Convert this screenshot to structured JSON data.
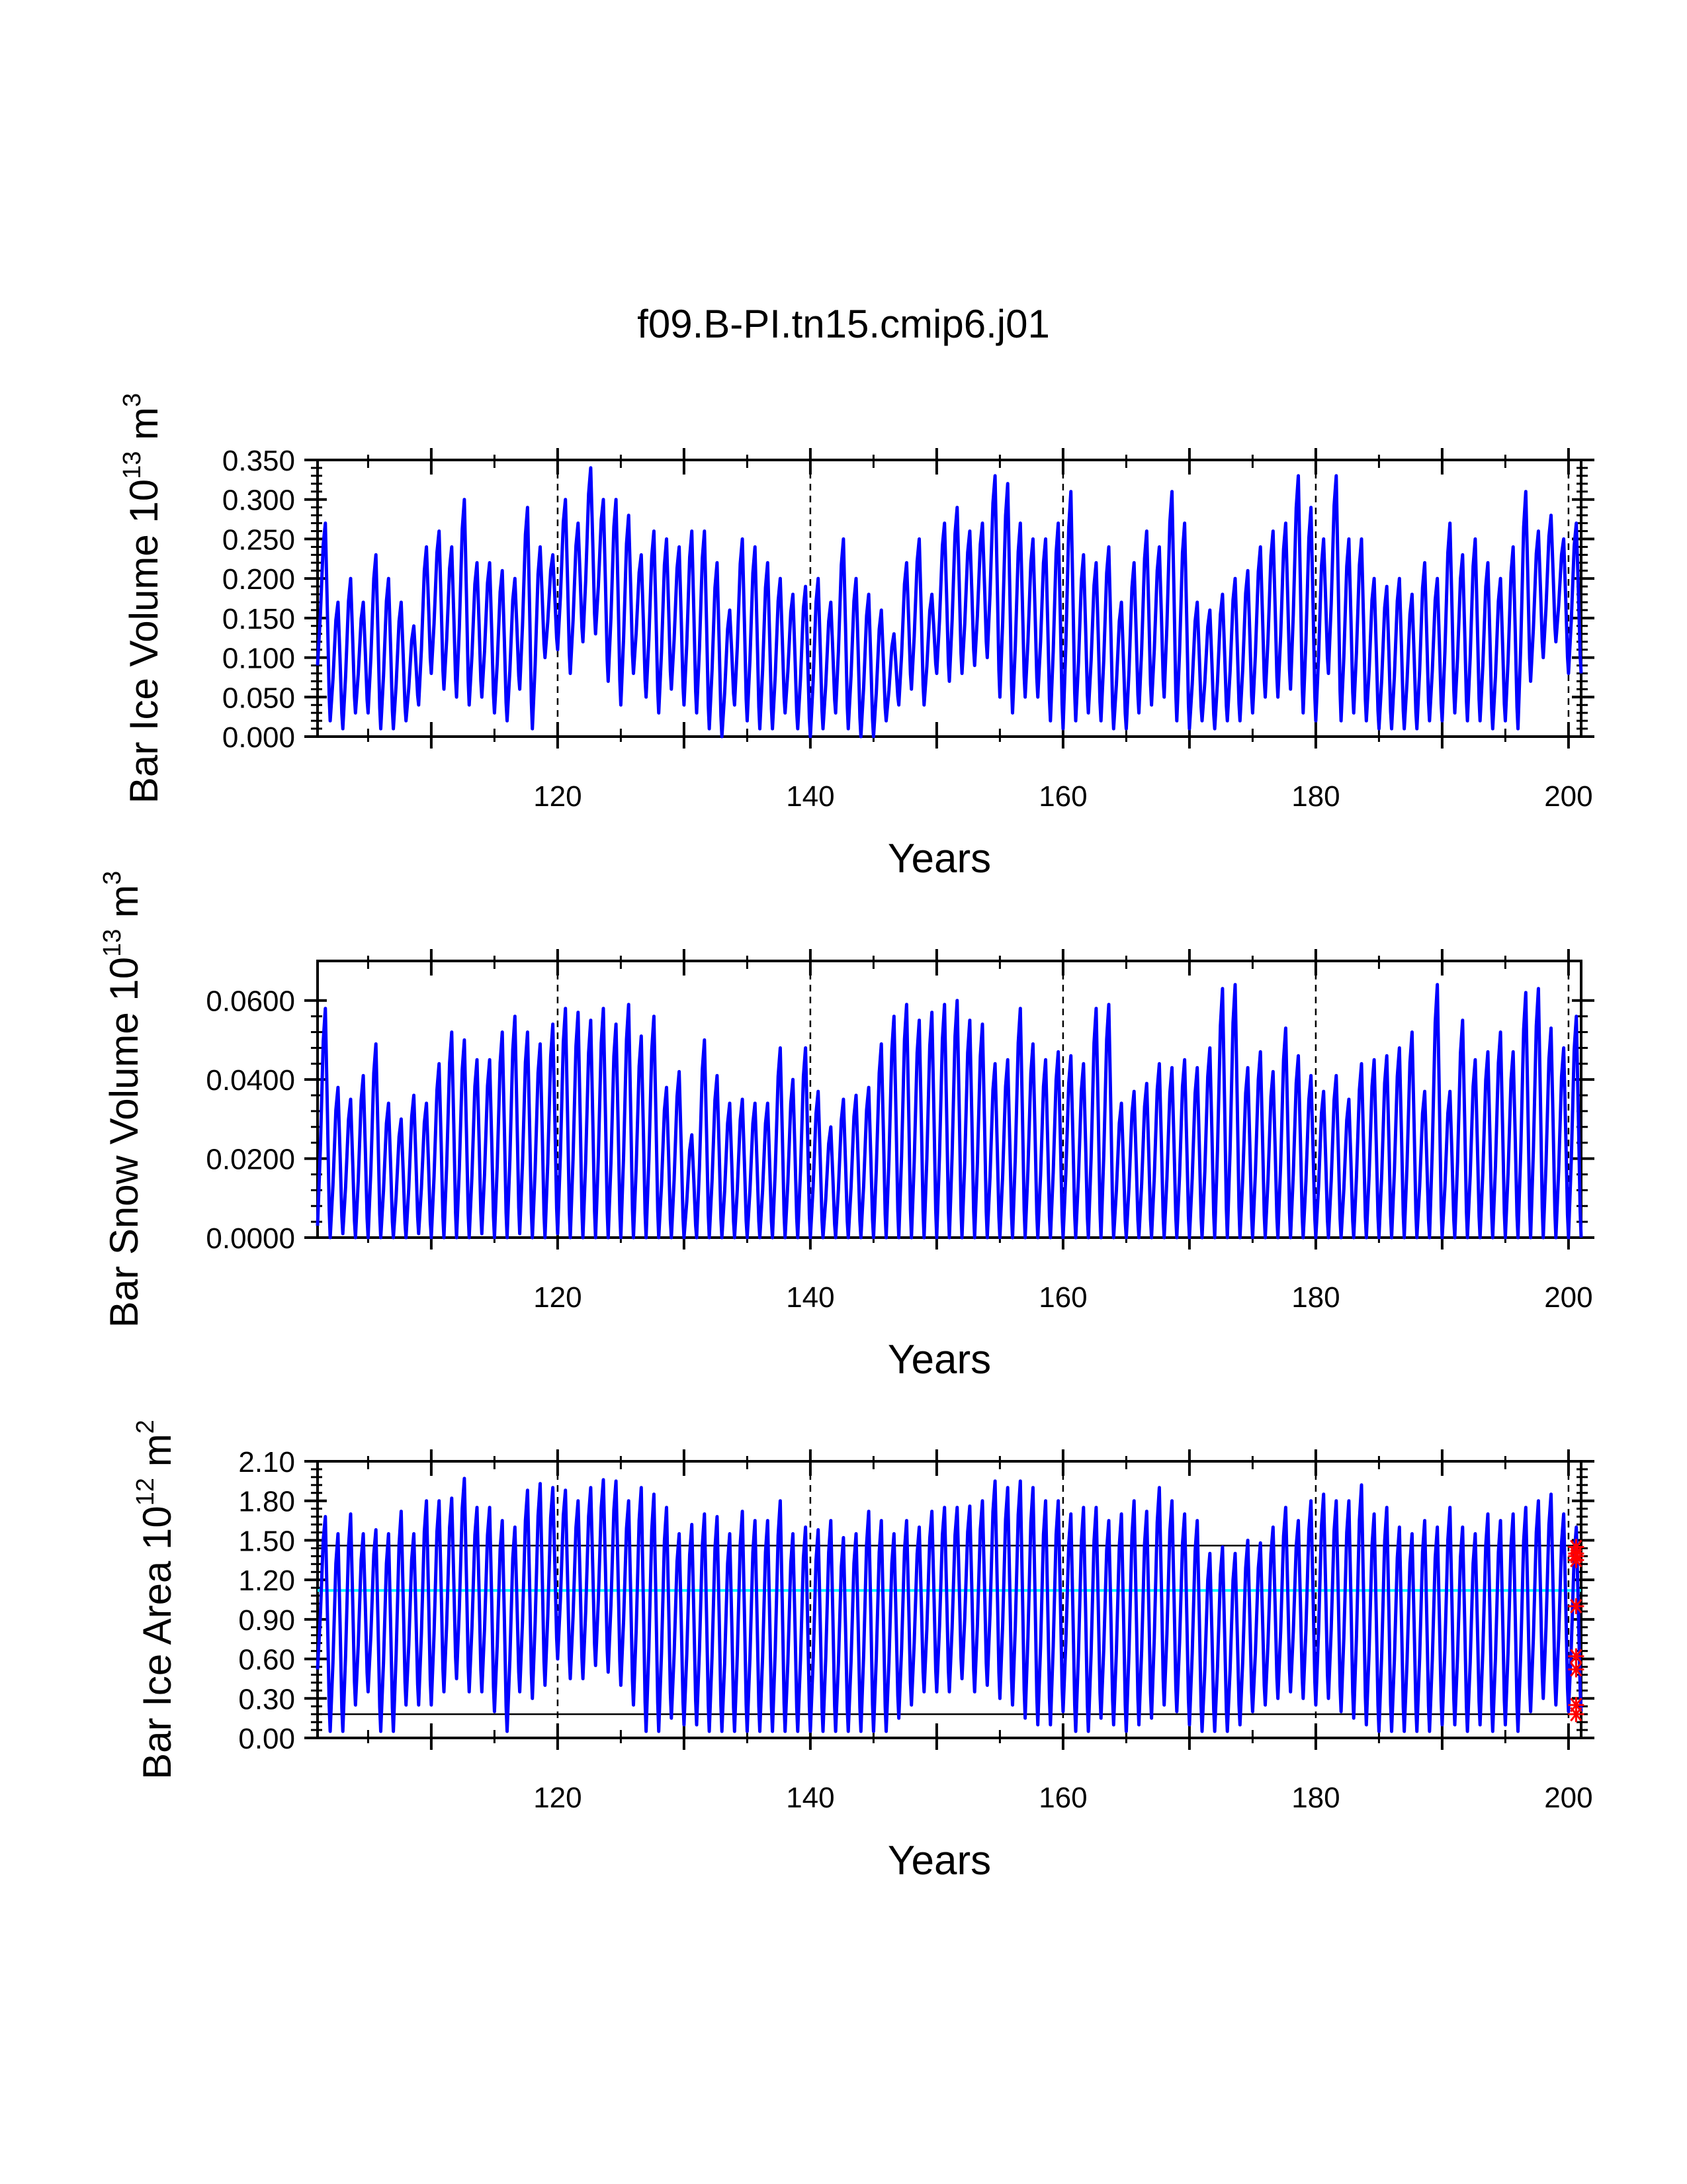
{
  "title": "f09.B-PI.tn15.cmip6.j01",
  "colors": {
    "series": "#0000ff",
    "mean_line": "#00ffff",
    "markers": "#ff0000",
    "axes": "#000000",
    "background": "#ffffff"
  },
  "chart_data": [
    {
      "type": "line",
      "panel": "ice_volume",
      "title": "",
      "xlabel": "Years",
      "ylabel_main": "Bar Ice Volume 10",
      "ylabel_exp": "13",
      "ylabel_unit": " m",
      "ylabel_unit_exp": "3",
      "xlim": [
        101,
        201
      ],
      "ylim": [
        0,
        0.35
      ],
      "yticks": [
        0,
        0.05,
        0.1,
        0.15,
        0.2,
        0.25,
        0.3,
        0.35
      ],
      "ytick_labels": [
        "0.000",
        "0.050",
        "0.100",
        "0.150",
        "0.200",
        "0.250",
        "0.300",
        "0.350"
      ],
      "xticks": [
        120,
        140,
        160,
        180,
        200
      ],
      "xtick_labels": [
        "120",
        "140",
        "160",
        "180",
        "200"
      ],
      "vlines": [
        120,
        140,
        160,
        180,
        200
      ],
      "series": [
        {
          "name": "Bar Ice Volume",
          "x_start": 101,
          "peaks": [
            0.27,
            0.17,
            0.2,
            0.17,
            0.23,
            0.2,
            0.17,
            0.14,
            0.24,
            0.26,
            0.24,
            0.3,
            0.22,
            0.22,
            0.21,
            0.2,
            0.29,
            0.24,
            0.23,
            0.3,
            0.27,
            0.34,
            0.3,
            0.3,
            0.28,
            0.23,
            0.26,
            0.25,
            0.24,
            0.26,
            0.26,
            0.22,
            0.16,
            0.25,
            0.24,
            0.22,
            0.2,
            0.18,
            0.19,
            0.2,
            0.17,
            0.25,
            0.2,
            0.18,
            0.16,
            0.13,
            0.22,
            0.25,
            0.18,
            0.27,
            0.29,
            0.26,
            0.27,
            0.33,
            0.32,
            0.27,
            0.25,
            0.25,
            0.27,
            0.31,
            0.23,
            0.22,
            0.24,
            0.17,
            0.22,
            0.26,
            0.24,
            0.31,
            0.27,
            0.17,
            0.16,
            0.18,
            0.2,
            0.21,
            0.24,
            0.26,
            0.27,
            0.33,
            0.29,
            0.25,
            0.33,
            0.25,
            0.25,
            0.2,
            0.19,
            0.2,
            0.18,
            0.22,
            0.2,
            0.27,
            0.23,
            0.25,
            0.22,
            0.2,
            0.24,
            0.31,
            0.26,
            0.28,
            0.25,
            0.27
          ],
          "troughs": [
            0.09,
            0.02,
            0.01,
            0.03,
            0.03,
            0.01,
            0.01,
            0.02,
            0.04,
            0.08,
            0.06,
            0.05,
            0.04,
            0.05,
            0.03,
            0.02,
            0.06,
            0.01,
            0.1,
            0.11,
            0.08,
            0.12,
            0.13,
            0.07,
            0.04,
            0.08,
            0.05,
            0.03,
            0.06,
            0.04,
            0.03,
            0.01,
            0.0,
            0.04,
            0.02,
            0.01,
            0.01,
            0.03,
            0.01,
            0.0,
            0.01,
            0.03,
            0.01,
            0.0,
            0.0,
            0.02,
            0.04,
            0.06,
            0.04,
            0.08,
            0.07,
            0.08,
            0.09,
            0.1,
            0.05,
            0.03,
            0.05,
            0.05,
            0.02,
            0.01,
            0.02,
            0.03,
            0.02,
            0.01,
            0.01,
            0.03,
            0.04,
            0.05,
            0.02,
            0.01,
            0.02,
            0.01,
            0.02,
            0.02,
            0.03,
            0.05,
            0.05,
            0.06,
            0.03,
            0.02,
            0.08,
            0.02,
            0.03,
            0.02,
            0.01,
            0.01,
            0.01,
            0.01,
            0.02,
            0.02,
            0.03,
            0.02,
            0.02,
            0.01,
            0.02,
            0.01,
            0.07,
            0.1,
            0.12,
            0.08
          ]
        }
      ],
      "hlines": []
    },
    {
      "type": "line",
      "panel": "snow_volume",
      "title": "",
      "xlabel": "Years",
      "ylabel_main": "Bar Snow Volume 10",
      "ylabel_exp": "13",
      "ylabel_unit": " m",
      "ylabel_unit_exp": "3",
      "xlim": [
        101,
        201
      ],
      "ylim": [
        0,
        0.07
      ],
      "yticks": [
        0,
        0.02,
        0.04,
        0.06
      ],
      "ytick_labels": [
        "0.0000",
        "0.0200",
        "0.0400",
        "0.0600"
      ],
      "xticks": [
        120,
        140,
        160,
        180,
        200
      ],
      "xtick_labels": [
        "120",
        "140",
        "160",
        "180",
        "200"
      ],
      "vlines": [
        120,
        140,
        160,
        180,
        200
      ],
      "series": [
        {
          "name": "Bar Snow Volume",
          "x_start": 101,
          "peaks": [
            0.058,
            0.038,
            0.035,
            0.041,
            0.049,
            0.034,
            0.03,
            0.036,
            0.034,
            0.044,
            0.052,
            0.05,
            0.045,
            0.045,
            0.052,
            0.056,
            0.052,
            0.049,
            0.054,
            0.058,
            0.057,
            0.055,
            0.058,
            0.054,
            0.059,
            0.051,
            0.056,
            0.038,
            0.042,
            0.026,
            0.05,
            0.041,
            0.034,
            0.035,
            0.034,
            0.034,
            0.048,
            0.04,
            0.048,
            0.037,
            0.028,
            0.035,
            0.036,
            0.038,
            0.049,
            0.056,
            0.059,
            0.055,
            0.057,
            0.059,
            0.06,
            0.055,
            0.054,
            0.044,
            0.045,
            0.058,
            0.049,
            0.045,
            0.047,
            0.046,
            0.044,
            0.058,
            0.059,
            0.034,
            0.037,
            0.039,
            0.044,
            0.043,
            0.045,
            0.043,
            0.048,
            0.063,
            0.064,
            0.043,
            0.047,
            0.042,
            0.053,
            0.046,
            0.041,
            0.037,
            0.041,
            0.035,
            0.044,
            0.045,
            0.046,
            0.048,
            0.052,
            0.037,
            0.064,
            0.037,
            0.055,
            0.045,
            0.047,
            0.052,
            0.047,
            0.062,
            0.063,
            0.053,
            0.048,
            0.056
          ],
          "troughs": [
            0.003,
            0.0,
            0.001,
            0.0,
            0.0,
            0.0,
            0.0,
            0.0,
            0.001,
            0.0,
            0.0,
            0.0,
            0.0,
            0.001,
            0.0,
            0.0,
            0.001,
            0.0,
            0.0,
            0.001,
            0.0,
            0.0,
            0.0,
            0.0,
            0.0,
            0.0,
            0.0,
            0.0,
            0.0,
            0.0,
            0.0,
            0.0,
            0.0,
            0.0,
            0.0,
            0.0,
            0.0,
            0.0,
            0.0,
            0.0,
            0.0,
            0.0,
            0.0,
            0.0,
            0.0,
            0.0,
            0.0,
            0.0,
            0.0,
            0.0,
            0.0,
            0.0,
            0.0,
            0.0,
            0.0,
            0.0,
            0.0,
            0.0,
            0.0,
            0.0,
            0.0,
            0.0,
            0.0,
            0.0,
            0.0,
            0.0,
            0.0,
            0.0,
            0.0,
            0.0,
            0.0,
            0.0,
            0.0,
            0.0,
            0.0,
            0.0,
            0.0,
            0.0,
            0.0,
            0.0,
            0.0,
            0.0,
            0.0,
            0.0,
            0.0,
            0.0,
            0.0,
            0.0,
            0.0,
            0.0,
            0.0,
            0.0,
            0.0,
            0.0,
            0.0,
            0.0,
            0.0,
            0.0,
            0.0,
            0.0
          ]
        }
      ],
      "hlines": []
    },
    {
      "type": "line",
      "panel": "ice_area",
      "title": "",
      "xlabel": "Years",
      "ylabel_main": "Bar Ice Area 10",
      "ylabel_exp": "12",
      "ylabel_unit": " m",
      "ylabel_unit_exp": "2",
      "xlim": [
        101,
        201
      ],
      "ylim": [
        0,
        2.1
      ],
      "yticks": [
        0,
        0.3,
        0.6,
        0.9,
        1.2,
        1.5,
        1.8,
        2.1
      ],
      "ytick_labels": [
        "0.00",
        "0.30",
        "0.60",
        "0.90",
        "1.20",
        "1.50",
        "1.80",
        "2.10"
      ],
      "xticks": [
        120,
        140,
        160,
        180,
        200
      ],
      "xtick_labels": [
        "120",
        "140",
        "160",
        "180",
        "200"
      ],
      "vlines": [
        120,
        140,
        160,
        180,
        200
      ],
      "series": [
        {
          "name": "Bar Ice Area",
          "x_start": 101,
          "peaks": [
            1.68,
            1.55,
            1.7,
            1.55,
            1.58,
            1.55,
            1.72,
            1.55,
            1.8,
            1.8,
            1.82,
            1.97,
            1.75,
            1.75,
            1.65,
            1.6,
            1.88,
            1.93,
            1.9,
            1.88,
            1.8,
            1.9,
            1.96,
            1.95,
            1.8,
            1.9,
            1.85,
            1.75,
            1.55,
            1.62,
            1.7,
            1.68,
            1.55,
            1.72,
            1.65,
            1.65,
            1.8,
            1.55,
            1.6,
            1.58,
            1.65,
            1.52,
            1.55,
            1.72,
            1.65,
            1.55,
            1.65,
            1.6,
            1.72,
            1.75,
            1.75,
            1.76,
            1.8,
            1.95,
            1.9,
            1.95,
            1.9,
            1.8,
            1.8,
            1.7,
            1.75,
            1.75,
            1.65,
            1.7,
            1.8,
            1.72,
            1.9,
            1.8,
            1.7,
            1.65,
            1.4,
            1.45,
            1.4,
            1.5,
            1.48,
            1.6,
            1.75,
            1.65,
            1.8,
            1.85,
            1.8,
            1.8,
            1.92,
            1.7,
            1.75,
            1.6,
            1.55,
            1.65,
            1.6,
            1.75,
            1.6,
            1.55,
            1.7,
            1.65,
            1.7,
            1.75,
            1.8,
            1.85,
            1.7,
            1.6
          ],
          "troughs": [
            0.52,
            0.05,
            0.05,
            0.25,
            0.35,
            0.05,
            0.05,
            0.25,
            0.25,
            0.25,
            0.35,
            0.45,
            0.35,
            0.35,
            0.2,
            0.05,
            0.35,
            0.3,
            0.4,
            0.6,
            0.45,
            0.45,
            0.55,
            0.5,
            0.4,
            0.25,
            0.05,
            0.05,
            0.15,
            0.1,
            0.1,
            0.05,
            0.05,
            0.05,
            0.05,
            0.05,
            0.05,
            0.05,
            0.05,
            0.05,
            0.05,
            0.05,
            0.05,
            0.05,
            0.05,
            0.05,
            0.15,
            0.25,
            0.35,
            0.35,
            0.35,
            0.45,
            0.35,
            0.4,
            0.3,
            0.25,
            0.15,
            0.1,
            0.1,
            0.2,
            0.05,
            0.05,
            0.15,
            0.1,
            0.05,
            0.1,
            0.15,
            0.25,
            0.2,
            0.1,
            0.05,
            0.05,
            0.05,
            0.1,
            0.2,
            0.25,
            0.3,
            0.35,
            0.3,
            0.25,
            0.3,
            0.2,
            0.15,
            0.1,
            0.05,
            0.05,
            0.05,
            0.05,
            0.05,
            0.1,
            0.1,
            0.05,
            0.1,
            0.05,
            0.1,
            0.05,
            0.2,
            0.3,
            0.25,
            0.2
          ]
        }
      ],
      "hlines": [
        {
          "name": "upper",
          "value": 1.46,
          "color": "#000000"
        },
        {
          "name": "mean",
          "value": 1.12,
          "color": "#00ffff"
        },
        {
          "name": "lower",
          "value": 0.18,
          "color": "#000000"
        }
      ],
      "markers": [
        1.45,
        1.4,
        1.38,
        1.35,
        1.0,
        0.62,
        0.52,
        0.25,
        0.18
      ]
    }
  ]
}
